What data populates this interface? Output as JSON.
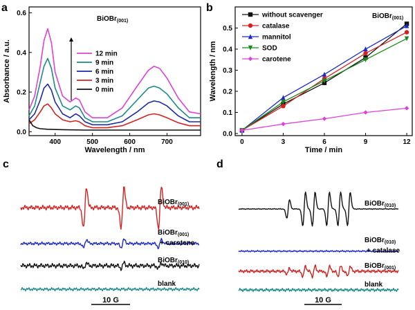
{
  "chart_data": [
    {
      "panel": "a",
      "type": "line",
      "annotation": "BiOBr",
      "annotation_sub": "(001)",
      "xlabel": "Wavelength / nm",
      "ylabel": "Absorbance / a.u.",
      "xlim": [
        330,
        790
      ],
      "ylim": [
        -0.02,
        0.63
      ],
      "xticks": [
        400,
        500,
        600,
        700
      ],
      "yticks": [
        0.0,
        0.2,
        0.4,
        0.6
      ],
      "legend_position": "center",
      "series": [
        {
          "name": "12 min",
          "color": "#e040d8",
          "x": [
            330,
            345,
            360,
            370,
            380,
            390,
            400,
            420,
            440,
            455,
            465,
            480,
            500,
            540,
            580,
            620,
            650,
            665,
            680,
            700,
            730,
            760,
            790
          ],
          "y": [
            0.11,
            0.18,
            0.33,
            0.46,
            0.52,
            0.45,
            0.3,
            0.18,
            0.15,
            0.17,
            0.16,
            0.1,
            0.07,
            0.07,
            0.12,
            0.23,
            0.31,
            0.33,
            0.32,
            0.27,
            0.17,
            0.1,
            0.09
          ]
        },
        {
          "name": "9 min",
          "color": "#1a8a8a",
          "x": [
            330,
            345,
            360,
            370,
            380,
            390,
            400,
            420,
            440,
            455,
            465,
            480,
            500,
            540,
            580,
            620,
            650,
            665,
            680,
            700,
            730,
            760,
            790
          ],
          "y": [
            0.08,
            0.13,
            0.25,
            0.33,
            0.37,
            0.32,
            0.22,
            0.13,
            0.11,
            0.13,
            0.12,
            0.07,
            0.05,
            0.05,
            0.08,
            0.16,
            0.22,
            0.23,
            0.22,
            0.19,
            0.12,
            0.07,
            0.07
          ]
        },
        {
          "name": "6 min",
          "color": "#1c28a8",
          "x": [
            330,
            345,
            360,
            370,
            380,
            390,
            400,
            420,
            440,
            455,
            465,
            480,
            500,
            540,
            580,
            620,
            650,
            665,
            680,
            700,
            730,
            760,
            790
          ],
          "y": [
            0.06,
            0.09,
            0.16,
            0.22,
            0.24,
            0.21,
            0.15,
            0.09,
            0.07,
            0.09,
            0.08,
            0.05,
            0.035,
            0.035,
            0.05,
            0.1,
            0.145,
            0.155,
            0.15,
            0.13,
            0.08,
            0.05,
            0.05
          ]
        },
        {
          "name": "3 min",
          "color": "#d62020",
          "x": [
            330,
            345,
            360,
            370,
            380,
            390,
            400,
            420,
            440,
            455,
            465,
            480,
            500,
            540,
            580,
            620,
            650,
            665,
            680,
            700,
            730,
            760,
            790
          ],
          "y": [
            0.04,
            0.06,
            0.1,
            0.13,
            0.14,
            0.12,
            0.09,
            0.06,
            0.05,
            0.055,
            0.05,
            0.03,
            0.02,
            0.02,
            0.03,
            0.06,
            0.085,
            0.09,
            0.085,
            0.07,
            0.045,
            0.03,
            0.03
          ]
        },
        {
          "name": "0 min",
          "color": "#111111",
          "x": [
            330,
            340,
            350,
            360,
            380,
            420,
            480,
            550,
            650,
            790
          ],
          "y": [
            0.06,
            0.03,
            0.02,
            0.015,
            0.012,
            0.01,
            0.008,
            0.008,
            0.008,
            0.008
          ]
        }
      ]
    },
    {
      "panel": "b",
      "type": "line",
      "annotation": "BiOBr",
      "annotation_sub": "(001)",
      "xlabel": "Time / min",
      "ylabel": "Wavelength / nm",
      "xlim": [
        -0.5,
        12.4
      ],
      "ylim": [
        -0.01,
        0.6
      ],
      "xticks": [
        0,
        3,
        6,
        9,
        12
      ],
      "yticks": [
        0.0,
        0.1,
        0.2,
        0.3,
        0.4,
        0.5
      ],
      "legend_position": "top-left",
      "x": [
        0,
        3,
        6,
        9,
        12
      ],
      "series": [
        {
          "name": "without scavenger",
          "color": "#111111",
          "marker": "square",
          "values": [
            0.015,
            0.14,
            0.24,
            0.36,
            0.52
          ]
        },
        {
          "name": "catalase",
          "color": "#d62020",
          "marker": "circle",
          "values": [
            0.015,
            0.13,
            0.26,
            0.38,
            0.48
          ]
        },
        {
          "name": "mannitol",
          "color": "#1c28c8",
          "marker": "triangle-up",
          "values": [
            0.015,
            0.17,
            0.28,
            0.4,
            0.51
          ]
        },
        {
          "name": "SOD",
          "color": "#1a8a1a",
          "marker": "triangle-down",
          "values": [
            0.015,
            0.15,
            0.25,
            0.35,
            0.45
          ]
        },
        {
          "name": "carotene",
          "color": "#e040d8",
          "marker": "diamond",
          "values": [
            0.015,
            0.045,
            0.07,
            0.1,
            0.12
          ]
        }
      ]
    },
    {
      "panel": "c",
      "type": "line",
      "scale_bar": "10 G",
      "traces": [
        {
          "label": "BiOBr",
          "sub": "(001)",
          "label2": "",
          "color": "#d62020",
          "amplitude": 6,
          "lines": [
            0.36,
            0.57,
            0.78
          ],
          "line_amp": 44
        },
        {
          "label": "BiOBr",
          "sub": "(001)",
          "label2": "+ carotene",
          "color": "#1c28c8",
          "amplitude": 4,
          "lines": [
            0.36,
            0.57,
            0.78
          ],
          "line_amp": 9
        },
        {
          "label": "BiOBr",
          "sub": "(010)",
          "label2": "",
          "color": "#111111",
          "amplitude": 6,
          "lines": [
            0.36,
            0.57,
            0.78
          ],
          "line_amp": 6
        },
        {
          "label": "blank",
          "sub": "",
          "label2": "",
          "color": "#1a8a8a",
          "amplitude": 4,
          "lines": [],
          "line_amp": 0
        }
      ]
    },
    {
      "panel": "d",
      "type": "line",
      "scale_bar": "10 G",
      "traces": [
        {
          "label": "BiOBr",
          "sub": "(010)",
          "label2": "",
          "color": "#111111",
          "amplitude": 1,
          "lines": [
            0.31,
            0.41,
            0.47,
            0.56,
            0.63,
            0.69
          ],
          "line_amp": 36
        },
        {
          "label": "BiOBr",
          "sub": "(010)",
          "label2": "+ catalase",
          "color": "#1c28c8",
          "amplitude": 2,
          "lines": [],
          "line_amp": 0
        },
        {
          "label": "BiOBr",
          "sub": "(001)",
          "label2": "",
          "color": "#d62020",
          "amplitude": 4,
          "lines": [
            0.31,
            0.41,
            0.47,
            0.56,
            0.63,
            0.69
          ],
          "line_amp": 11
        },
        {
          "label": "blank",
          "sub": "",
          "label2": "",
          "color": "#1a8a8a",
          "amplitude": 4,
          "lines": [],
          "line_amp": 0
        }
      ]
    }
  ],
  "panel_labels": [
    "a",
    "b",
    "c",
    "d"
  ]
}
